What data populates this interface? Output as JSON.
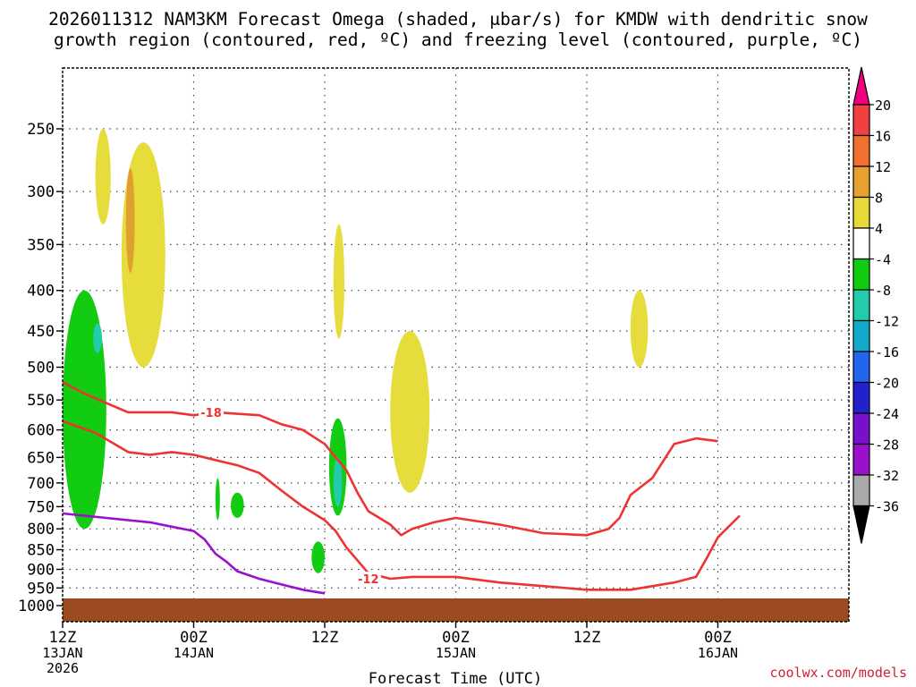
{
  "title": {
    "line1": "2026011312 NAM3KM Forecast Omega (shaded, μbar/s) for KMDW with dendritic snow",
    "line2": "growth region (contoured, red, ºC) and freezing level (contoured, purple, ºC)"
  },
  "credit": "coolwx.com/models",
  "colors": {
    "dgz_contour": "#ee3333",
    "freezing_level": "#9911cc",
    "ground": "#9c4a20",
    "omega_neg_light": "#11cc11",
    "omega_neg_strong": "#22ccaa",
    "omega_pos_light": "#e6dc3c",
    "omega_pos_strong": "#e0a030"
  },
  "chart_data": {
    "type": "heatmap",
    "title": "2026011312 NAM3KM Forecast Omega (shaded, μbar/s) for KMDW with dendritic snow growth region (contoured, red, ºC) and freezing level (contoured, purple, ºC)",
    "xlabel": "Forecast Time (UTC)",
    "ylabel": "",
    "x_range_hours": [
      0,
      36
    ],
    "x_ticks": [
      {
        "hour": 0,
        "line1": "12Z",
        "line2": "13JAN",
        "line3": "2026"
      },
      {
        "hour": 6,
        "line1": "00Z",
        "line2": "14JAN",
        "line3": ""
      },
      {
        "hour": 12,
        "line1": "12Z",
        "line2": "",
        "line3": ""
      },
      {
        "hour": 18,
        "line1": "00Z",
        "line2": "15JAN",
        "line3": ""
      },
      {
        "hour": 24,
        "line1": "12Z",
        "line2": "",
        "line3": ""
      },
      {
        "hour": 30,
        "line1": "00Z",
        "line2": "16JAN",
        "line3": ""
      }
    ],
    "y_axis_pressure_hpa": [
      250,
      300,
      350,
      400,
      450,
      500,
      550,
      600,
      650,
      700,
      750,
      800,
      850,
      900,
      950,
      1000
    ],
    "y_range_hpa": [
      1000,
      200
    ],
    "y_scale": "log-pressure",
    "grid": true,
    "colorbar": {
      "unit": "μbar/s",
      "labels": [
        "20",
        "16",
        "12",
        "8",
        "4",
        "-4",
        "-8",
        "-12",
        "-16",
        "-20",
        "-24",
        "-28",
        "-32",
        "-36"
      ],
      "colors": [
        "#f00080",
        "#f04040",
        "#f07030",
        "#e8a030",
        "#e8d838",
        "#ffffff",
        "#11cc11",
        "#22ccaa",
        "#11aacc",
        "#2266ee",
        "#2222cc",
        "#7711cc",
        "#9911cc",
        "#aaaaaa",
        "#000000"
      ]
    },
    "contours": [
      {
        "name": "-12",
        "color": "#ee3333",
        "label_hour": 14.0,
        "label_hpa": 925,
        "points": [
          [
            0,
            585
          ],
          [
            1.5,
            605
          ],
          [
            3,
            640
          ],
          [
            4,
            645
          ],
          [
            5,
            640
          ],
          [
            6,
            645
          ],
          [
            7,
            655
          ],
          [
            8,
            665
          ],
          [
            9,
            680
          ],
          [
            10,
            715
          ],
          [
            11,
            750
          ],
          [
            12,
            780
          ],
          [
            12.5,
            805
          ],
          [
            13,
            845
          ],
          [
            14,
            910
          ],
          [
            15,
            925
          ],
          [
            16,
            920
          ],
          [
            18,
            920
          ],
          [
            20,
            935
          ],
          [
            22,
            945
          ],
          [
            24,
            955
          ],
          [
            26,
            955
          ],
          [
            28,
            935
          ],
          [
            29,
            920
          ],
          [
            29.5,
            870
          ],
          [
            30,
            820
          ],
          [
            31,
            770
          ]
        ]
      },
      {
        "name": "-18",
        "color": "#ee3333",
        "label_hour": 6.8,
        "label_hpa": 570,
        "points": [
          [
            0,
            522
          ],
          [
            1,
            540
          ],
          [
            2,
            555
          ],
          [
            3,
            570
          ],
          [
            5,
            570
          ],
          [
            6,
            575
          ],
          [
            7,
            570
          ],
          [
            9,
            575
          ],
          [
            10,
            590
          ],
          [
            11,
            600
          ],
          [
            12,
            625
          ],
          [
            13,
            675
          ],
          [
            13.5,
            720
          ],
          [
            14,
            760
          ],
          [
            15,
            790
          ],
          [
            15.5,
            815
          ],
          [
            16,
            800
          ],
          [
            17,
            785
          ],
          [
            18,
            775
          ],
          [
            20,
            790
          ],
          [
            22,
            810
          ],
          [
            24,
            815
          ],
          [
            25,
            800
          ],
          [
            25.5,
            775
          ],
          [
            26,
            725
          ],
          [
            27,
            690
          ],
          [
            28,
            625
          ],
          [
            29,
            615
          ],
          [
            30,
            620
          ]
        ]
      },
      {
        "name": "0",
        "color": "#9911cc",
        "label_hour": null,
        "label_hpa": null,
        "points": [
          [
            0,
            765
          ],
          [
            1,
            770
          ],
          [
            2,
            775
          ],
          [
            3,
            780
          ],
          [
            4,
            785
          ],
          [
            5,
            795
          ],
          [
            6,
            805
          ],
          [
            6.5,
            825
          ],
          [
            7,
            860
          ],
          [
            7.5,
            880
          ],
          [
            8,
            905
          ],
          [
            9,
            925
          ],
          [
            10,
            940
          ],
          [
            11,
            955
          ],
          [
            12,
            965
          ]
        ]
      }
    ],
    "omega_regions": [
      {
        "sign": "positive",
        "level": "4 to 8",
        "color": "#e6dc3c",
        "hour_range": [
          1.5,
          2.2
        ],
        "hpa_range": [
          250,
          330
        ]
      },
      {
        "sign": "positive",
        "level": "4 to 8",
        "color": "#e6dc3c",
        "hour_range": [
          2.7,
          4.7
        ],
        "hpa_range": [
          260,
          500
        ]
      },
      {
        "sign": "positive",
        "level": "8 to 12",
        "color": "#e0a030",
        "hour_range": [
          2.9,
          3.3
        ],
        "hpa_range": [
          280,
          380
        ]
      },
      {
        "sign": "positive",
        "level": "4 to 8",
        "color": "#e6dc3c",
        "hour_range": [
          15.0,
          16.8
        ],
        "hpa_range": [
          450,
          720
        ]
      },
      {
        "sign": "positive",
        "level": "4 to 8",
        "color": "#e6dc3c",
        "hour_range": [
          12.4,
          12.9
        ],
        "hpa_range": [
          330,
          460
        ]
      },
      {
        "sign": "positive",
        "level": "4 to 8",
        "color": "#e6dc3c",
        "hour_range": [
          26.0,
          26.8
        ],
        "hpa_range": [
          400,
          500
        ]
      },
      {
        "sign": "negative",
        "level": "-4 to -8",
        "color": "#11cc11",
        "hour_range": [
          0.0,
          2.0
        ],
        "hpa_range": [
          400,
          800
        ]
      },
      {
        "sign": "negative",
        "level": "-8 to -12",
        "color": "#22ccaa",
        "hour_range": [
          1.4,
          1.8
        ],
        "hpa_range": [
          440,
          480
        ]
      },
      {
        "sign": "negative",
        "level": "-4 to -8",
        "color": "#11cc11",
        "hour_range": [
          12.2,
          13.0
        ],
        "hpa_range": [
          580,
          770
        ]
      },
      {
        "sign": "negative",
        "level": "-8 to -12",
        "color": "#22ccaa",
        "hour_range": [
          12.4,
          12.8
        ],
        "hpa_range": [
          650,
          750
        ]
      },
      {
        "sign": "negative",
        "level": "-4 to -8",
        "color": "#11cc11",
        "hour_range": [
          11.4,
          12.0
        ],
        "hpa_range": [
          830,
          910
        ]
      },
      {
        "sign": "negative",
        "level": "-4 to -8",
        "color": "#11cc11",
        "hour_range": [
          7.7,
          8.3
        ],
        "hpa_range": [
          720,
          775
        ]
      },
      {
        "sign": "negative",
        "level": "-4 to -8",
        "color": "#11cc11",
        "hour_range": [
          7.0,
          7.2
        ],
        "hpa_range": [
          690,
          780
        ]
      }
    ]
  }
}
